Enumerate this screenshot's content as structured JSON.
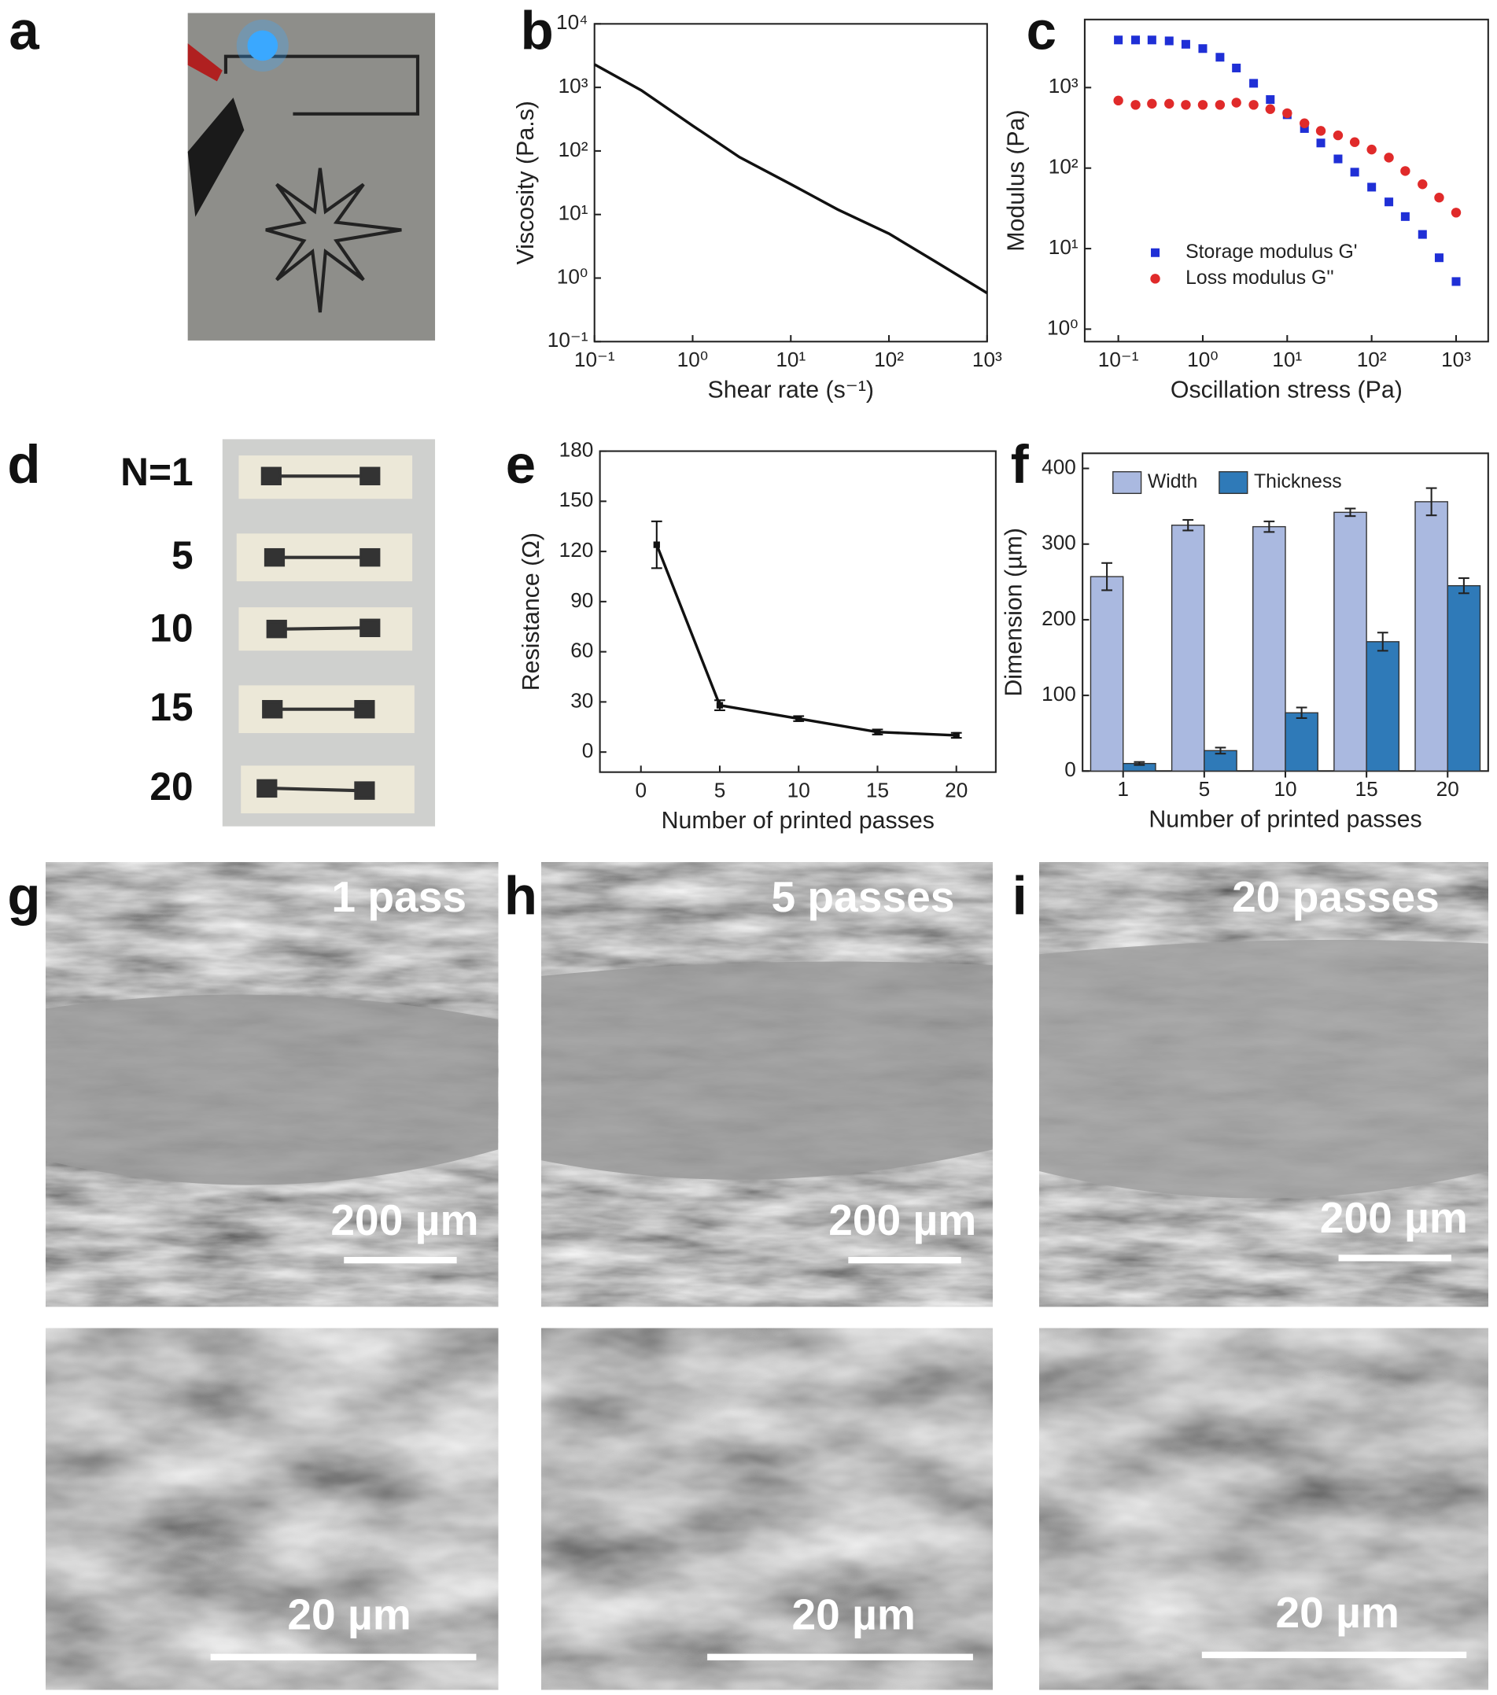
{
  "panel_labels": [
    "a",
    "b",
    "c",
    "d",
    "e",
    "f",
    "g",
    "h",
    "i"
  ],
  "panel_d": {
    "labels": [
      "N=1",
      "5",
      "10",
      "15",
      "20"
    ]
  },
  "sem": [
    {
      "title": "1 pass",
      "scale_low": "200 µm",
      "scale_high": "20 µm"
    },
    {
      "title": "5 passes",
      "scale_low": "200 µm",
      "scale_high": "20 µm"
    },
    {
      "title": "20 passes",
      "scale_low": "200 µm",
      "scale_high": "20 µm"
    }
  ],
  "chart_data": [
    {
      "type": "line",
      "xlabel": "Shear rate (s⁻¹)",
      "ylabel": "Viscosity (Pa.s)",
      "x": [
        0.1,
        0.3,
        1,
        3,
        10,
        30,
        100,
        300,
        1000
      ],
      "values": [
        2300,
        900,
        250,
        80,
        30,
        12,
        5,
        1.8,
        0.58
      ],
      "color": "#111111",
      "xscale": "log",
      "yscale": "log",
      "xlim": [
        0.1,
        1000
      ],
      "ylim": [
        0.1,
        10000
      ],
      "xticks": [
        {
          "value": 0.1,
          "label": "10⁻¹"
        },
        {
          "value": 1,
          "label": "10⁰"
        },
        {
          "value": 10,
          "label": "10¹"
        },
        {
          "value": 100,
          "label": "10²"
        },
        {
          "value": 1000,
          "label": "10³"
        }
      ],
      "yticks": [
        {
          "value": 0.1,
          "label": "10⁻¹"
        },
        {
          "value": 1,
          "label": "10⁰"
        },
        {
          "value": 10,
          "label": "10¹"
        },
        {
          "value": 100,
          "label": "10²"
        },
        {
          "value": 1000,
          "label": "10³"
        },
        {
          "value": 10000,
          "label": "10⁴"
        }
      ]
    },
    {
      "type": "scatter",
      "xlabel": "Oscillation stress (Pa)",
      "ylabel": "Modulus (Pa)",
      "x": [
        0.1,
        0.16,
        0.25,
        0.4,
        0.63,
        1,
        1.6,
        2.5,
        4,
        6.3,
        10,
        16,
        25,
        40,
        63,
        100,
        160,
        250,
        400,
        630,
        1000
      ],
      "series": [
        {
          "name": "Storage modulus G'",
          "color": "#1f2fd6",
          "marker": "square",
          "values": [
            3900,
            3900,
            3900,
            3800,
            3450,
            3050,
            2380,
            1750,
            1130,
            710,
            460,
            310,
            205,
            130,
            89,
            58,
            38,
            25,
            15,
            7.7,
            3.9
          ]
        },
        {
          "name": "Loss modulus G''",
          "color": "#e02a2a",
          "marker": "circle",
          "values": [
            690,
            610,
            630,
            630,
            610,
            610,
            610,
            650,
            610,
            540,
            480,
            360,
            290,
            255,
            210,
            170,
            135,
            92,
            63,
            43,
            28
          ]
        }
      ],
      "legend": "lower left",
      "xscale": "log",
      "yscale": "log",
      "xlim": [
        0.04,
        2400
      ],
      "ylim": [
        0.7,
        7000
      ],
      "xticks": [
        {
          "value": 0.1,
          "label": "10⁻¹"
        },
        {
          "value": 1,
          "label": "10⁰"
        },
        {
          "value": 10,
          "label": "10¹"
        },
        {
          "value": 100,
          "label": "10²"
        },
        {
          "value": 1000,
          "label": "10³"
        }
      ],
      "yticks": [
        {
          "value": 1,
          "label": "10⁰"
        },
        {
          "value": 10,
          "label": "10¹"
        },
        {
          "value": 100,
          "label": "10²"
        },
        {
          "value": 1000,
          "label": "10³"
        }
      ]
    },
    {
      "type": "line",
      "xlabel": "Number of printed passes",
      "ylabel": "Resistance (Ω)",
      "x": [
        1,
        5,
        10,
        15,
        20
      ],
      "values": [
        124,
        28,
        20,
        12,
        10
      ],
      "errors": [
        14,
        3,
        1.5,
        1.5,
        1.5
      ],
      "color": "#111111",
      "xlim": [
        -2.6,
        22.5
      ],
      "ylim": [
        -12,
        180
      ],
      "xticks": [
        0,
        5,
        10,
        15,
        20
      ],
      "yticks": [
        0,
        30,
        60,
        90,
        120,
        150,
        180
      ]
    },
    {
      "type": "bar",
      "xlabel": "Number of printed passes",
      "ylabel": "Dimension (µm)",
      "categories": [
        "1",
        "5",
        "10",
        "15",
        "20"
      ],
      "series": [
        {
          "name": "Width",
          "color": "#aab9e0",
          "values": [
            257,
            325,
            323,
            342,
            356
          ],
          "errors": [
            18,
            7,
            7,
            5,
            18
          ]
        },
        {
          "name": "Thickness",
          "color": "#2f7ab8",
          "values": [
            10,
            27,
            77,
            171,
            245
          ],
          "errors": [
            2,
            4,
            7,
            12,
            10
          ]
        }
      ],
      "legend": "upper left",
      "ylim": [
        0,
        420
      ],
      "yticks": [
        0,
        100,
        200,
        300,
        400
      ]
    }
  ]
}
